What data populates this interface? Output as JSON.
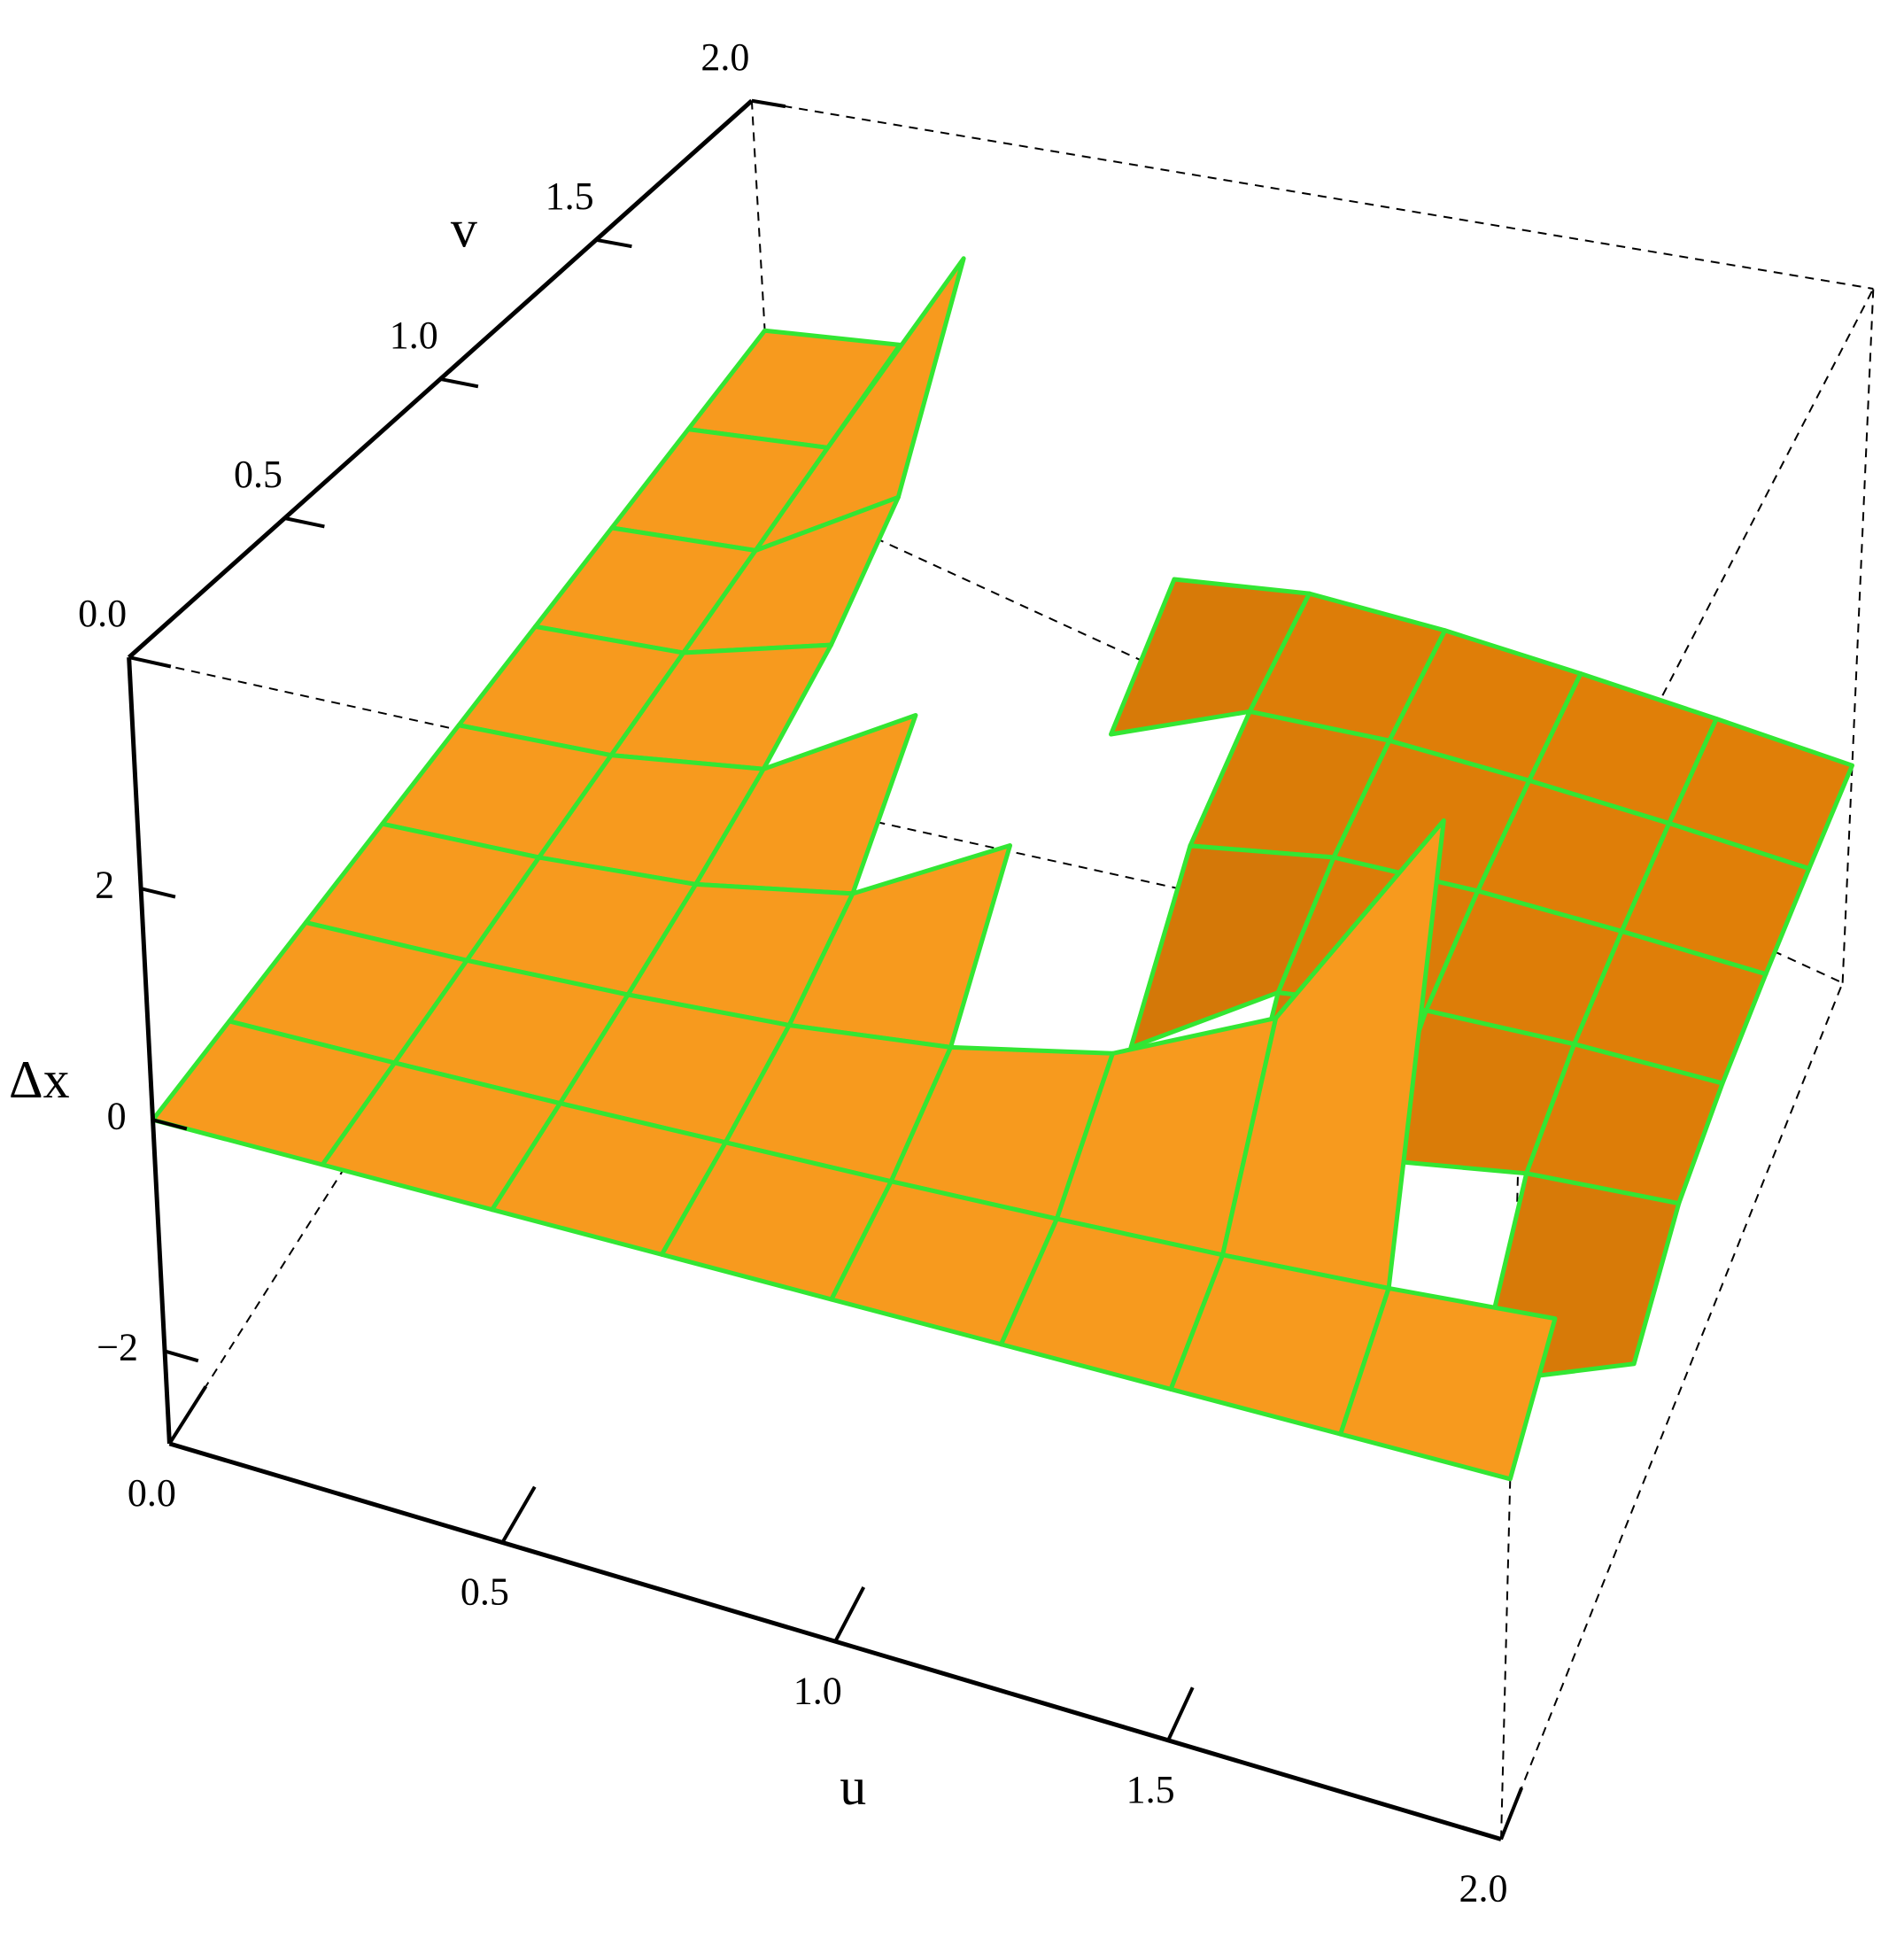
{
  "chart_data": {
    "type": "surface3d",
    "x_label": "u",
    "y_label": "v",
    "z_label": "Δx",
    "x": [
      0,
      0.25,
      0.5,
      0.75,
      1,
      1.25,
      1.5,
      1.75,
      2
    ],
    "y": [
      0,
      0.25,
      0.5,
      0.75,
      1,
      1.25,
      1.5,
      1.75,
      2
    ],
    "z": [
      [
        0,
        0,
        0,
        0,
        0,
        0,
        0,
        0,
        0
      ],
      [
        0,
        0.03,
        0.07,
        0.12,
        0.17,
        0.23,
        0.3,
        0.39,
        0.5
      ],
      [
        0,
        0.07,
        0.17,
        0.3,
        0.5,
        0.83,
        1.5,
        3.5,
        null
      ],
      [
        0,
        0.12,
        0.3,
        0.64,
        1.5,
        null,
        null,
        -2.1,
        -1.5
      ],
      [
        0,
        0.17,
        0.5,
        1.5,
        null,
        -2.5,
        -1.5,
        -1.17,
        -1
      ],
      [
        0,
        0.23,
        0.83,
        null,
        -2.5,
        -1.39,
        -1.07,
        -0.92,
        -0.83
      ],
      [
        0,
        0.3,
        1.5,
        null,
        -1.5,
        -1.07,
        -0.9,
        -0.81,
        -0.75
      ],
      [
        0,
        0.39,
        3.5,
        -2.1,
        -1.17,
        -0.92,
        -0.81,
        -0.74,
        -0.7
      ],
      [
        0,
        0.5,
        null,
        -1.5,
        -1,
        -0.83,
        -0.75,
        -0.7,
        -0.67
      ]
    ],
    "xlim": [
      0,
      2
    ],
    "ylim": [
      0,
      2
    ],
    "zlim": [
      -2.8,
      4
    ],
    "xticks": [
      {
        "value": 0,
        "label": "0.0"
      },
      0.5,
      {
        "value": 1,
        "label": "1.0"
      },
      1.5,
      {
        "value": 2,
        "label": "2.0"
      }
    ],
    "yticks": [
      {
        "value": 0,
        "label": "0.0"
      },
      0.5,
      {
        "value": 1,
        "label": "1.0"
      },
      1.5,
      {
        "value": 2,
        "label": "2.0"
      }
    ],
    "zticks": [
      {
        "value": -2,
        "label": "−2"
      },
      0,
      2
    ],
    "color": "#f79a1e",
    "mesh_color": "#33e633"
  }
}
